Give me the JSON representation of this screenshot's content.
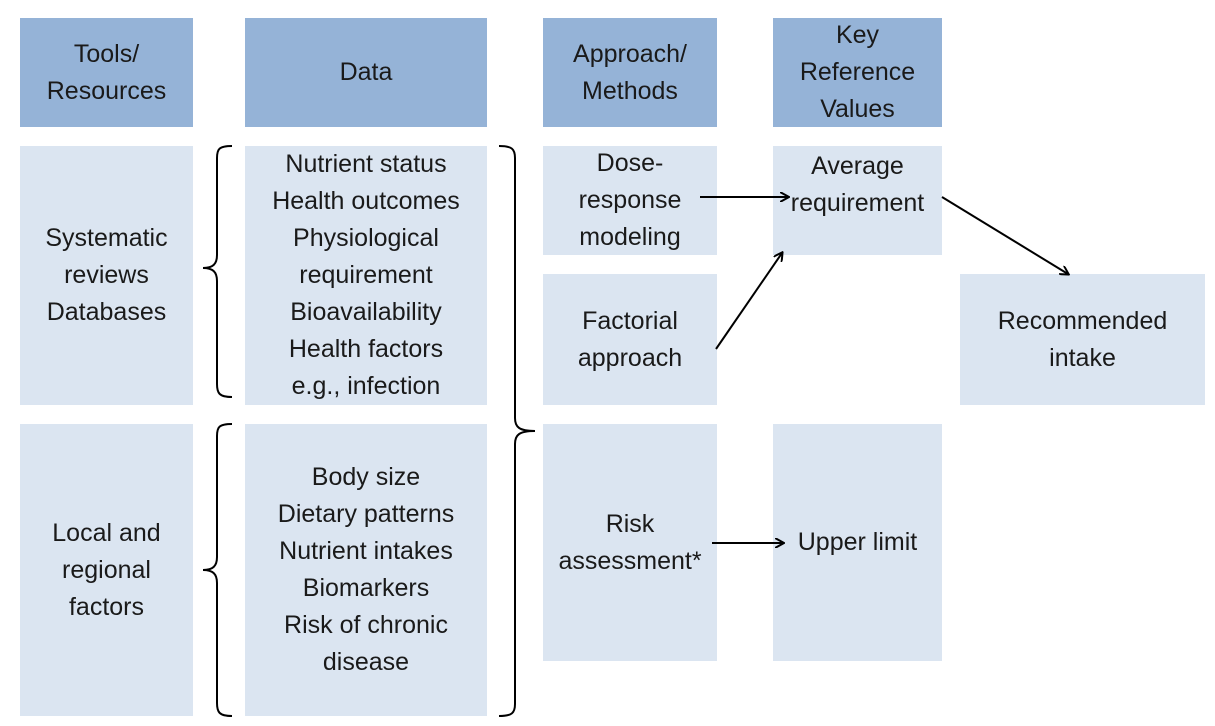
{
  "headers": {
    "tools": "Tools/\nResources",
    "data": "Data",
    "approach": "Approach/\nMethods",
    "reference": "Key\nReference\nValues"
  },
  "tools": {
    "systematic": "Systematic\nreviews\nDatabases",
    "local": "Local and\nregional\nfactors"
  },
  "data": {
    "upper": "Nutrient status\nHealth outcomes\nPhysiological\nrequirement\nBioavailability\nHealth factors\ne.g., infection",
    "lower": "Body size\nDietary patterns\nNutrient intakes\nBiomarkers\nRisk of chronic\ndisease"
  },
  "methods": {
    "dose_response": "Dose-\nresponse\nmodeling",
    "factorial": "Factorial\napproach",
    "risk": "Risk\nassessment*"
  },
  "reference": {
    "average": "Average\nrequirement",
    "upper_limit": "Upper limit"
  },
  "outcome": {
    "recommended": "Recommended\nintake"
  },
  "colors": {
    "header_fill": "#95b3d7",
    "cell_fill": "#dbe5f1",
    "line": "#000000"
  }
}
